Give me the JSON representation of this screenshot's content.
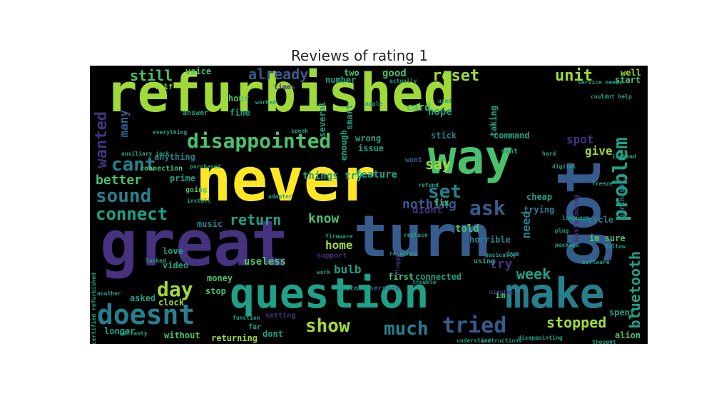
{
  "title": "Reviews of rating 1",
  "palette": {
    "yellow": "#fde725",
    "lime": "#a0da39",
    "green": "#4ac16d",
    "teal": "#1fa187",
    "blueteal": "#277f8e",
    "blue": "#365c8d",
    "indigo": "#46327e",
    "purple": "#440154"
  },
  "words": [
    {
      "id": "refurbished",
      "text": "refurbished",
      "color": "lime"
    },
    {
      "id": "never",
      "text": "never",
      "color": "yellow"
    },
    {
      "id": "great",
      "text": "great",
      "color": "indigo"
    },
    {
      "id": "turn",
      "text": "turn",
      "color": "blue"
    },
    {
      "id": "way",
      "text": "way",
      "color": "green"
    },
    {
      "id": "got",
      "text": "got",
      "color": "blue"
    },
    {
      "id": "question",
      "text": "question",
      "color": "teal"
    },
    {
      "id": "make",
      "text": "make",
      "color": "blueteal"
    },
    {
      "id": "doesnt",
      "text": "doesnt",
      "color": "blueteal"
    },
    {
      "id": "disappointed",
      "text": "disappointed",
      "color": "green"
    },
    {
      "id": "tried",
      "text": "tried",
      "color": "blue"
    },
    {
      "id": "much",
      "text": "much",
      "color": "blueteal"
    },
    {
      "id": "show",
      "text": "show",
      "color": "lime"
    },
    {
      "id": "problem",
      "text": "problem",
      "color": "teal"
    },
    {
      "id": "bluetooth",
      "text": "bluetooth",
      "color": "teal"
    },
    {
      "id": "day",
      "text": "day",
      "color": "lime"
    },
    {
      "id": "sound",
      "text": "sound",
      "color": "blueteal"
    },
    {
      "id": "connect",
      "text": "connect",
      "color": "teal"
    },
    {
      "id": "cant",
      "text": "cant",
      "color": "blueteal"
    },
    {
      "id": "wanted",
      "text": "wanted",
      "color": "indigo"
    },
    {
      "id": "ask",
      "text": "ask",
      "color": "blue"
    },
    {
      "id": "set",
      "text": "set",
      "color": "blueteal"
    },
    {
      "id": "stopped",
      "text": "stopped",
      "color": "lime"
    },
    {
      "id": "week",
      "text": "week",
      "color": "teal"
    },
    {
      "id": "unit",
      "text": "unit",
      "color": "lime"
    },
    {
      "id": "reset",
      "text": "reset",
      "color": "lime"
    },
    {
      "id": "still",
      "text": "still",
      "color": "green"
    },
    {
      "id": "already",
      "text": "already",
      "color": "blue"
    },
    {
      "id": "return",
      "text": "return",
      "color": "teal"
    },
    {
      "id": "better",
      "text": "better",
      "color": "green"
    },
    {
      "id": "say",
      "text": "say",
      "color": "lime"
    },
    {
      "id": "spot",
      "text": "spot",
      "color": "indigo"
    },
    {
      "id": "give",
      "text": "give",
      "color": "lime"
    },
    {
      "id": "nothing",
      "text": "nothing",
      "color": "blue"
    },
    {
      "id": "know",
      "text": "know",
      "color": "green"
    },
    {
      "id": "home",
      "text": "home",
      "color": "lime"
    },
    {
      "id": "bulb",
      "text": "bulb",
      "color": "teal"
    },
    {
      "id": "try",
      "text": "try",
      "color": "indigo"
    },
    {
      "id": "need",
      "text": "need",
      "color": "blueteal"
    },
    {
      "id": "many",
      "text": "many",
      "color": "blue"
    },
    {
      "id": "useless",
      "text": "useless",
      "color": "green"
    },
    {
      "id": "didnt",
      "text": "didnt",
      "color": "indigo"
    },
    {
      "id": "told",
      "text": "told",
      "color": "green"
    },
    {
      "id": "voice",
      "text": "voice",
      "color": "green"
    },
    {
      "id": "hour",
      "text": "hour",
      "color": "green"
    },
    {
      "id": "fine",
      "text": "fine",
      "color": "teal"
    },
    {
      "id": "connection",
      "text": "connection",
      "color": "green"
    },
    {
      "id": "anything",
      "text": "anything",
      "color": "blueteal"
    },
    {
      "id": "prime",
      "text": "prime",
      "color": "teal"
    },
    {
      "id": "going",
      "text": "going",
      "color": "green"
    },
    {
      "id": "music",
      "text": "music",
      "color": "blueteal"
    },
    {
      "id": "love",
      "text": "love",
      "color": "teal"
    },
    {
      "id": "video",
      "text": "video",
      "color": "teal"
    },
    {
      "id": "money",
      "text": "money",
      "color": "green"
    },
    {
      "id": "asked",
      "text": "asked",
      "color": "teal"
    },
    {
      "id": "clock",
      "text": "clock",
      "color": "lime"
    },
    {
      "id": "longer",
      "text": "longer",
      "color": "teal"
    },
    {
      "id": "without",
      "text": "without",
      "color": "green"
    },
    {
      "id": "returning",
      "text": "returning",
      "color": "lime"
    },
    {
      "id": "dont",
      "text": "dont",
      "color": "teal"
    },
    {
      "id": "stop",
      "text": "stop",
      "color": "green"
    },
    {
      "id": "first",
      "text": "first",
      "color": "green"
    },
    {
      "id": "connected",
      "text": "connected",
      "color": "teal"
    },
    {
      "id": "im-sure",
      "text": "im sure",
      "color": "green"
    },
    {
      "id": "im",
      "text": "im",
      "color": "green"
    },
    {
      "id": "trying",
      "text": "trying",
      "color": "blueteal"
    },
    {
      "id": "cheap",
      "text": "cheap",
      "color": "teal"
    },
    {
      "id": "horrible",
      "text": "horrible",
      "color": "blueteal"
    },
    {
      "id": "waste-money",
      "text": "waste money",
      "color": "indigo"
    },
    {
      "id": "cycle",
      "text": "cycle",
      "color": "blueteal"
    },
    {
      "id": "purchase",
      "text": "purchase",
      "color": "blueteal"
    },
    {
      "id": "spent",
      "text": "spent",
      "color": "teal"
    },
    {
      "id": "alion",
      "text": "alion",
      "color": "green"
    },
    {
      "id": "hope",
      "text": "hope",
      "color": "teal"
    },
    {
      "id": "card",
      "text": "card",
      "color": "green"
    },
    {
      "id": "good",
      "text": "good",
      "color": "green"
    },
    {
      "id": "taking",
      "text": "taking",
      "color": "teal"
    },
    {
      "id": "command",
      "text": "command",
      "color": "teal"
    },
    {
      "id": "stick",
      "text": "stick",
      "color": "blueteal"
    },
    {
      "id": "several",
      "text": "several",
      "color": "teal"
    },
    {
      "id": "smart",
      "text": "smart",
      "color": "teal"
    },
    {
      "id": "enough",
      "text": "enough",
      "color": "teal"
    },
    {
      "id": "number",
      "text": "number",
      "color": "teal"
    },
    {
      "id": "wrong",
      "text": "wrong",
      "color": "teal"
    },
    {
      "id": "issue",
      "text": "issue",
      "color": "teal"
    },
    {
      "id": "things-try",
      "text": "things try",
      "color": "teal"
    },
    {
      "id": "feature",
      "text": "feature",
      "color": "teal"
    },
    {
      "id": "wont",
      "text": "wont",
      "color": "blue"
    },
    {
      "id": "support",
      "text": "support",
      "color": "indigo"
    },
    {
      "id": "customer",
      "text": "customer",
      "color": "teal"
    },
    {
      "id": "service",
      "text": "service",
      "color": "blue"
    },
    {
      "id": "answer",
      "text": "answer",
      "color": "teal"
    },
    {
      "id": "times",
      "text": "times",
      "color": "indigo"
    },
    {
      "id": "two",
      "text": "two",
      "color": "green"
    },
    {
      "id": "well",
      "text": "well",
      "color": "lime"
    },
    {
      "id": "start",
      "text": "start",
      "color": "green"
    },
    {
      "id": "sent",
      "text": "sent",
      "color": "teal"
    },
    {
      "id": "fix",
      "text": "fix",
      "color": "green"
    },
    {
      "id": "used",
      "text": "used",
      "color": "teal"
    },
    {
      "id": "using",
      "text": "using",
      "color": "teal"
    },
    {
      "id": "ive",
      "text": "ive",
      "color": "teal"
    },
    {
      "id": "basically",
      "text": "basically",
      "color": "teal"
    },
    {
      "id": "package",
      "text": "package",
      "color": "teal"
    },
    {
      "id": "language",
      "text": "language",
      "color": "teal"
    },
    {
      "id": "plug",
      "text": "plug",
      "color": "teal"
    },
    {
      "id": "follow",
      "text": "follow",
      "color": "teal"
    },
    {
      "id": "digital",
      "text": "digital",
      "color": "teal"
    },
    {
      "id": "freeze",
      "text": "freeze",
      "color": "teal"
    },
    {
      "id": "hard",
      "text": "hard",
      "color": "teal"
    },
    {
      "id": "setting",
      "text": "setting",
      "color": "indigo"
    },
    {
      "id": "far",
      "text": "far",
      "color": "teal"
    },
    {
      "id": "half",
      "text": "half",
      "color": "lime"
    },
    {
      "id": "function",
      "text": "function",
      "color": "teal"
    },
    {
      "id": "returned",
      "text": "returned",
      "color": "teal"
    },
    {
      "id": "replace",
      "text": "replace",
      "color": "teal"
    },
    {
      "id": "refund",
      "text": "refund",
      "color": "teal"
    },
    {
      "id": "adapter",
      "text": "adapter",
      "color": "teal"
    },
    {
      "id": "everything",
      "text": "everything",
      "color": "teal"
    },
    {
      "id": "auxiliary-jack",
      "text": "auxiliary jack",
      "color": "teal"
    },
    {
      "id": "purchased",
      "text": "purchased",
      "color": "teal"
    },
    {
      "id": "install",
      "text": "install",
      "color": "teal"
    },
    {
      "id": "disappointing",
      "text": "disappointing",
      "color": "teal"
    },
    {
      "id": "understand",
      "text": "understand",
      "color": "teal"
    },
    {
      "id": "instructions",
      "text": "instructions",
      "color": "teal"
    },
    {
      "id": "thought",
      "text": "thought",
      "color": "teal"
    },
    {
      "id": "warranty",
      "text": "warranty",
      "color": "teal"
    },
    {
      "id": "another",
      "text": "another",
      "color": "teal"
    },
    {
      "id": "looked",
      "text": "looked",
      "color": "teal"
    },
    {
      "id": "certified-refurbished",
      "text": "certified refurbished",
      "color": "teal"
    },
    {
      "id": "firmware",
      "text": "firmware",
      "color": "teal"
    },
    {
      "id": "plugged",
      "text": "plugged",
      "color": "indigo"
    },
    {
      "id": "work",
      "text": "work",
      "color": "teal"
    },
    {
      "id": "trouble",
      "text": "trouble",
      "color": "teal"
    },
    {
      "id": "apple",
      "text": "apple",
      "color": "teal"
    },
    {
      "id": "actually",
      "text": "actually",
      "color": "teal"
    },
    {
      "id": "couldnt-help",
      "text": "couldnt help",
      "color": "teal"
    },
    {
      "id": "service-needs",
      "text": "service needs",
      "color": "teal"
    },
    {
      "id": "instead",
      "text": "instead",
      "color": "teal"
    },
    {
      "id": "minutes",
      "text": "minutes",
      "color": "indigo"
    },
    {
      "id": "speak",
      "text": "speak",
      "color": "teal"
    },
    {
      "id": "worked",
      "text": "worked",
      "color": "teal"
    },
    {
      "id": "software",
      "text": "software",
      "color": "teal"
    }
  ]
}
